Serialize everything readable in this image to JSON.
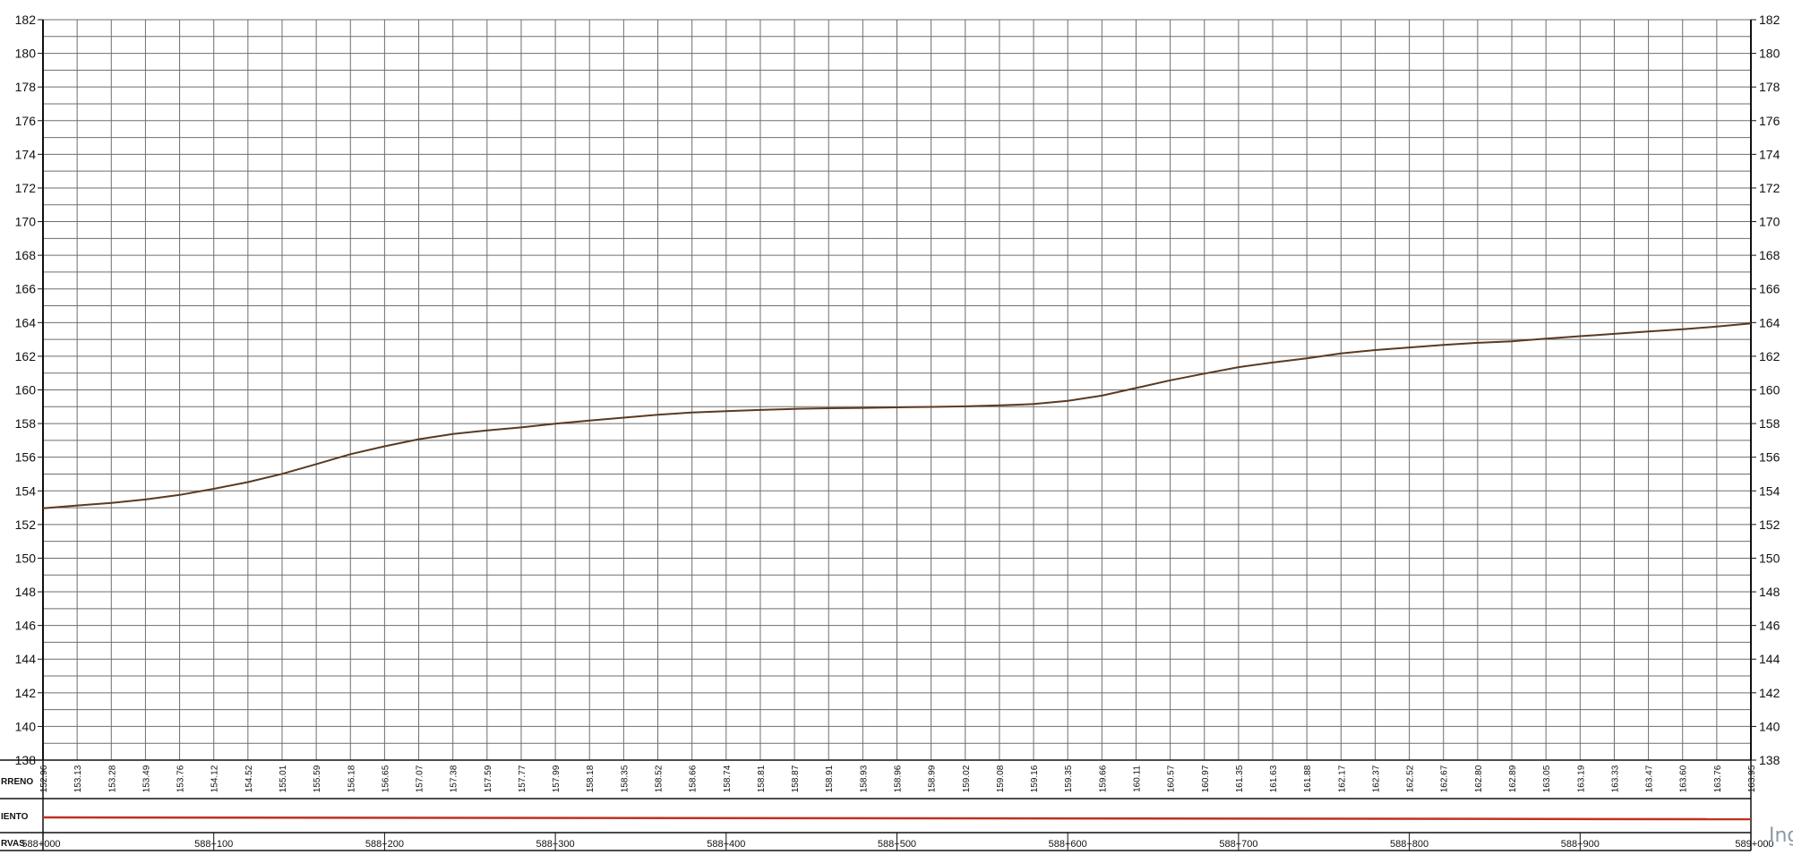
{
  "chart_data": {
    "type": "line",
    "title": "",
    "xlabel": "",
    "ylabel": "",
    "x_range": [
      0,
      1000
    ],
    "ylim": [
      138,
      182
    ],
    "y_ticks": [
      182,
      180,
      178,
      176,
      174,
      172,
      170,
      168,
      166,
      164,
      162,
      160,
      158,
      156,
      154,
      152,
      150,
      148,
      146,
      144,
      142,
      140,
      138
    ],
    "grid": true,
    "grid_step_x": 20,
    "grid_step_y": 1,
    "line_color": "#5a3a22",
    "redline_color": "#c03020",
    "series": [
      {
        "x": [
          0,
          20,
          40,
          60,
          80,
          100,
          120,
          140,
          160,
          180,
          200,
          220,
          240,
          260,
          280,
          300,
          320,
          340,
          360,
          380,
          400,
          420,
          440,
          460,
          480,
          500,
          520,
          540,
          560,
          580,
          600,
          620,
          640,
          660,
          680,
          700,
          720,
          740,
          760,
          780,
          800,
          820,
          840,
          860,
          880,
          900,
          920,
          940,
          960,
          980,
          1000
        ],
        "values": [
          152.96,
          153.13,
          153.28,
          153.49,
          153.76,
          154.12,
          154.52,
          155.01,
          155.59,
          156.18,
          156.65,
          157.07,
          157.38,
          157.59,
          157.77,
          157.99,
          158.18,
          158.35,
          158.52,
          158.66,
          158.74,
          158.81,
          158.87,
          158.91,
          158.93,
          158.96,
          158.99,
          159.02,
          159.08,
          159.16,
          159.35,
          159.66,
          160.11,
          160.57,
          160.97,
          161.35,
          161.63,
          161.88,
          162.17,
          162.37,
          162.52,
          162.67,
          162.8,
          162.89,
          163.05,
          163.19,
          163.33,
          163.47,
          163.6,
          163.76,
          163.95
        ]
      }
    ],
    "elevation_labels": [
      "152.96",
      "153.13",
      "153.28",
      "153.49",
      "153.76",
      "154.12",
      "154.52",
      "155.01",
      "155.59",
      "156.18",
      "156.65",
      "157.07",
      "157.38",
      "157.59",
      "157.77",
      "157.99",
      "158.18",
      "158.35",
      "158.52",
      "158.66",
      "158.74",
      "158.81",
      "158.87",
      "158.91",
      "158.93",
      "158.96",
      "158.99",
      "159.02",
      "159.08",
      "159.16",
      "159.35",
      "159.66",
      "160.11",
      "160.57",
      "160.97",
      "161.35",
      "161.63",
      "161.88",
      "162.17",
      "162.37",
      "162.52",
      "162.67",
      "162.80",
      "162.89",
      "163.05",
      "163.19",
      "163.33",
      "163.47",
      "163.60",
      "163.76",
      "163.95"
    ],
    "stations": [
      {
        "x": 0,
        "label": "588+000"
      },
      {
        "x": 100,
        "label": "588+100"
      },
      {
        "x": 200,
        "label": "588+200"
      },
      {
        "x": 300,
        "label": "588+300"
      },
      {
        "x": 400,
        "label": "588+400"
      },
      {
        "x": 500,
        "label": "588+500"
      },
      {
        "x": 600,
        "label": "588+600"
      },
      {
        "x": 700,
        "label": "588+700"
      },
      {
        "x": 800,
        "label": "588+800"
      },
      {
        "x": 900,
        "label": "588+900"
      },
      {
        "x": 1000,
        "label": "589+000"
      }
    ],
    "row_labels": {
      "terrain": "RRENO",
      "alignment": "IENTO",
      "curves": "RVAS"
    },
    "watermark": "Ing"
  }
}
